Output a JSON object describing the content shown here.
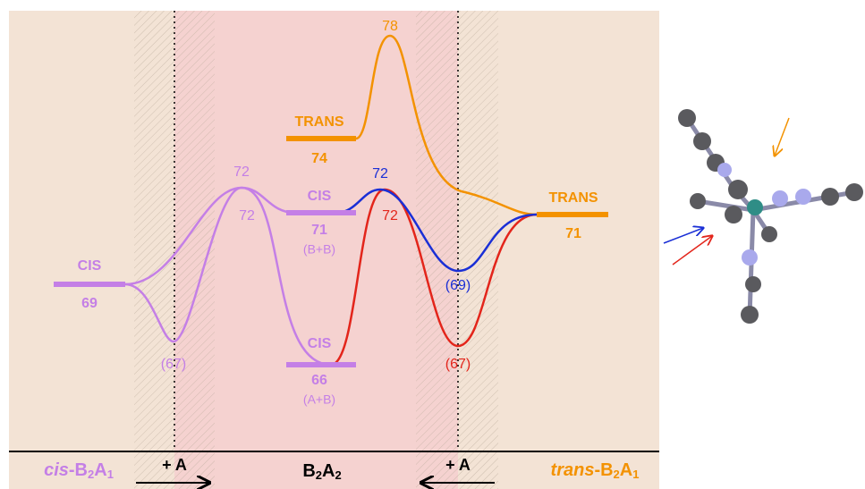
{
  "levels": [
    {
      "name": "CIS",
      "energy": "69"
    },
    {
      "name": "TRANS",
      "energy": "74"
    },
    {
      "name": "CIS",
      "energy": "71",
      "note": "(B+B)"
    },
    {
      "name": "CIS",
      "energy": "66",
      "note": "(A+B)"
    },
    {
      "name": "TRANS",
      "energy": "71"
    }
  ],
  "barriers": [
    "78",
    "72",
    "72",
    "72",
    "72"
  ],
  "intermediates": [
    "(67)",
    "(69)",
    "(67)"
  ],
  "footer": {
    "left": [
      "cis",
      "-B",
      "2",
      "A",
      "1"
    ],
    "add_left": "+ A",
    "center": [
      "B",
      "2",
      "A",
      "2"
    ],
    "add_right": "+ A",
    "right": [
      "trans",
      "-B",
      "2",
      "A",
      "1"
    ]
  }
}
